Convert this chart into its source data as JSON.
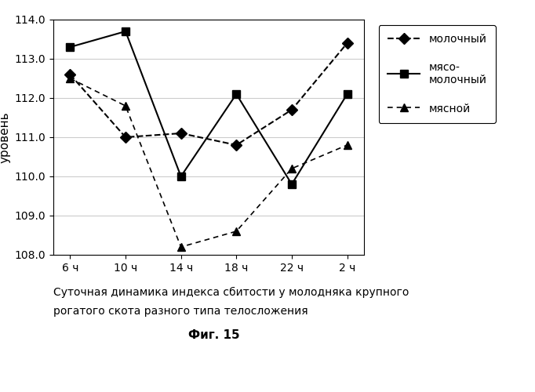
{
  "x_labels": [
    "6 ч",
    "10 ч",
    "14 ч",
    "18 ч",
    "22 ч",
    "2 ч"
  ],
  "x_positions": [
    0,
    1,
    2,
    3,
    4,
    5
  ],
  "molochny": [
    112.6,
    111.0,
    111.1,
    110.8,
    111.7,
    113.4
  ],
  "myaso_molochny": [
    113.3,
    113.7,
    110.0,
    112.1,
    109.8,
    112.1
  ],
  "myasnoy": [
    112.5,
    111.8,
    108.2,
    108.6,
    110.2,
    110.8
  ],
  "ylim": [
    108.0,
    114.0
  ],
  "yticks": [
    108.0,
    109.0,
    110.0,
    111.0,
    112.0,
    113.0,
    114.0
  ],
  "ylabel": "уровень",
  "legend_molochny": "молочный",
  "legend_myaso_molochny": "мясо-\nмолочный",
  "legend_myasnoy": "мясной",
  "caption_line1": "Суточная динамика индекса сбитости у молодняка крупного",
  "caption_line2": "рогатого скота разного типа телосложения",
  "caption_fig": "Фиг. 15",
  "line_color": "#000000",
  "bg_color": "#ffffff",
  "grid_color": "#cccccc"
}
